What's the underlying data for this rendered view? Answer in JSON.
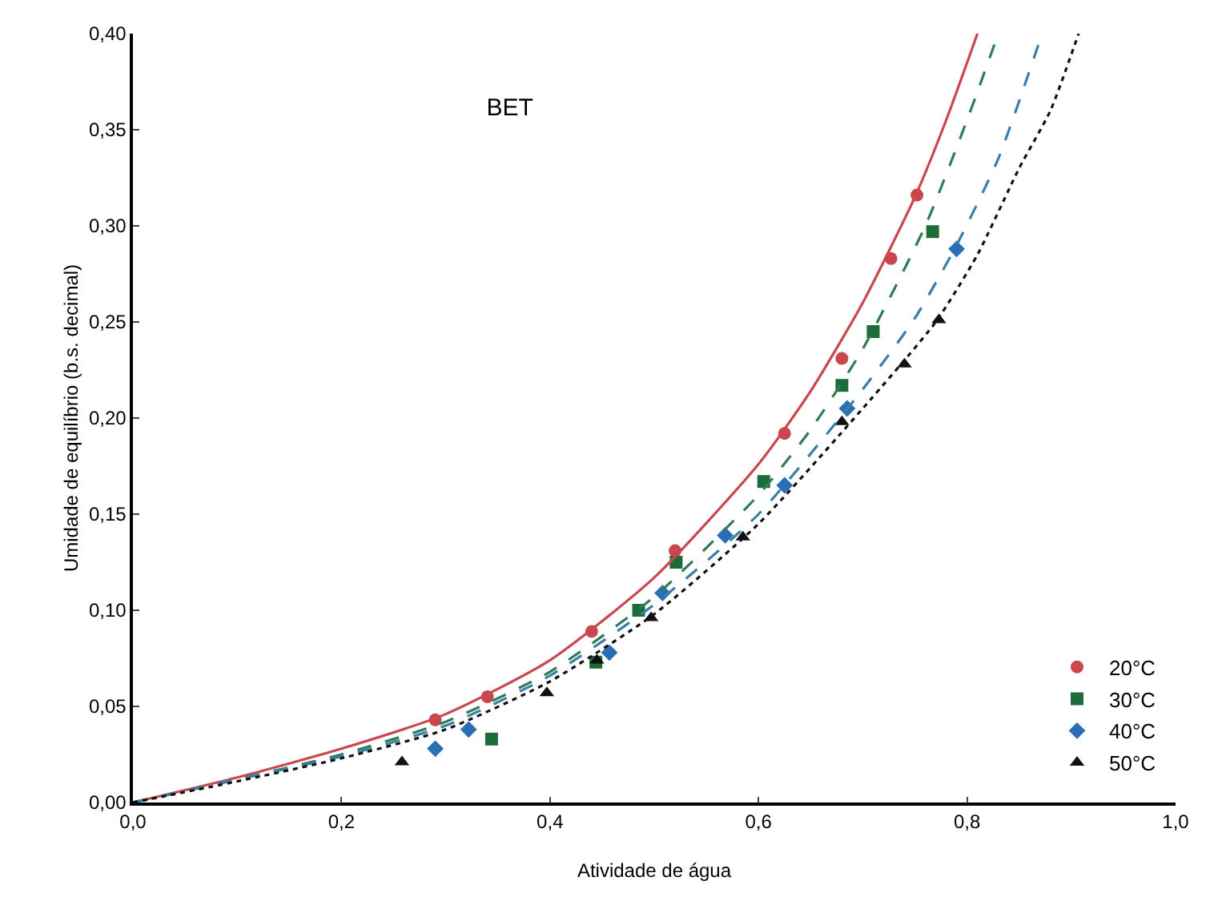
{
  "chart_data": {
    "type": "scatter",
    "title": "BET",
    "xlabel": "Atividade de água",
    "ylabel": "Umidade de equilíbrio (b.s. decimal)",
    "xlim": [
      0,
      1
    ],
    "ylim": [
      0,
      0.4
    ],
    "xticks": [
      {
        "value": 0,
        "label": "0,0"
      },
      {
        "value": 0.2,
        "label": "0,2"
      },
      {
        "value": 0.4,
        "label": "0,4"
      },
      {
        "value": 0.6,
        "label": "0,6"
      },
      {
        "value": 0.8,
        "label": "0,8"
      },
      {
        "value": 1,
        "label": "1,0"
      }
    ],
    "yticks": [
      {
        "value": 0,
        "label": "0,00"
      },
      {
        "value": 0.05,
        "label": "0,05"
      },
      {
        "value": 0.1,
        "label": "0,10"
      },
      {
        "value": 0.15,
        "label": "0,15"
      },
      {
        "value": 0.2,
        "label": "0,20"
      },
      {
        "value": 0.25,
        "label": "0,25"
      },
      {
        "value": 0.3,
        "label": "0,30"
      },
      {
        "value": 0.35,
        "label": "0,35"
      },
      {
        "value": 0.4,
        "label": "0,40"
      }
    ],
    "grid": false,
    "legend": "bottom right",
    "series": [
      {
        "name": "20°C",
        "marker": "circle",
        "color": "#c9474f",
        "x": [
          0.29,
          0.34,
          0.44,
          0.52,
          0.625,
          0.68,
          0.727,
          0.752
        ],
        "values": [
          0.043,
          0.055,
          0.089,
          0.131,
          0.192,
          0.231,
          0.283,
          0.316
        ]
      },
      {
        "name": "30°C",
        "marker": "square",
        "color": "#1e6b3a",
        "x": [
          0.344,
          0.444,
          0.485,
          0.521,
          0.605,
          0.68,
          0.71,
          0.767
        ],
        "values": [
          0.033,
          0.073,
          0.1,
          0.125,
          0.167,
          0.217,
          0.245,
          0.297
        ]
      },
      {
        "name": "40°C",
        "marker": "diamond",
        "color": "#2a6fb5",
        "x": [
          0.29,
          0.322,
          0.457,
          0.508,
          0.568,
          0.625,
          0.685,
          0.79
        ],
        "values": [
          0.028,
          0.038,
          0.078,
          0.109,
          0.139,
          0.165,
          0.205,
          0.288
        ]
      },
      {
        "name": "50°C",
        "marker": "triangle",
        "color": "#111111",
        "x": [
          0.258,
          0.397,
          0.445,
          0.497,
          0.585,
          0.68,
          0.74,
          0.773
        ],
        "values": [
          0.021,
          0.057,
          0.074,
          0.096,
          0.138,
          0.198,
          0.228,
          0.251
        ]
      },
      {
        "type": "line",
        "line_style": "solid",
        "color": "#c9474f",
        "x": [
          0,
          0.1,
          0.2,
          0.3,
          0.4,
          0.5,
          0.6,
          0.65,
          0.7,
          0.75,
          0.78,
          0.81
        ],
        "values": [
          0,
          0.013,
          0.028,
          0.046,
          0.074,
          0.117,
          0.176,
          0.214,
          0.26,
          0.315,
          0.355,
          0.4
        ]
      },
      {
        "type": "line",
        "line_style": "dashed",
        "color": "#2e7d55",
        "x": [
          0,
          0.1,
          0.2,
          0.3,
          0.4,
          0.5,
          0.6,
          0.65,
          0.7,
          0.76,
          0.8,
          0.83
        ],
        "values": [
          0,
          0.012,
          0.025,
          0.042,
          0.068,
          0.107,
          0.16,
          0.194,
          0.236,
          0.3,
          0.355,
          0.4
        ]
      },
      {
        "type": "line",
        "line_style": "dashed",
        "color": "#3a7fa8",
        "x": [
          0,
          0.1,
          0.2,
          0.3,
          0.4,
          0.5,
          0.6,
          0.7,
          0.75,
          0.79,
          0.83,
          0.872
        ],
        "values": [
          0,
          0.012,
          0.024,
          0.04,
          0.066,
          0.103,
          0.15,
          0.215,
          0.252,
          0.29,
          0.335,
          0.4
        ]
      },
      {
        "type": "line",
        "line_style": "dotted",
        "color": "#111111",
        "x": [
          0,
          0.1,
          0.2,
          0.3,
          0.4,
          0.5,
          0.6,
          0.7,
          0.77,
          0.81,
          0.85,
          0.88,
          0.907
        ],
        "values": [
          0,
          0.011,
          0.023,
          0.038,
          0.063,
          0.098,
          0.145,
          0.205,
          0.25,
          0.285,
          0.33,
          0.36,
          0.4
        ]
      }
    ]
  }
}
